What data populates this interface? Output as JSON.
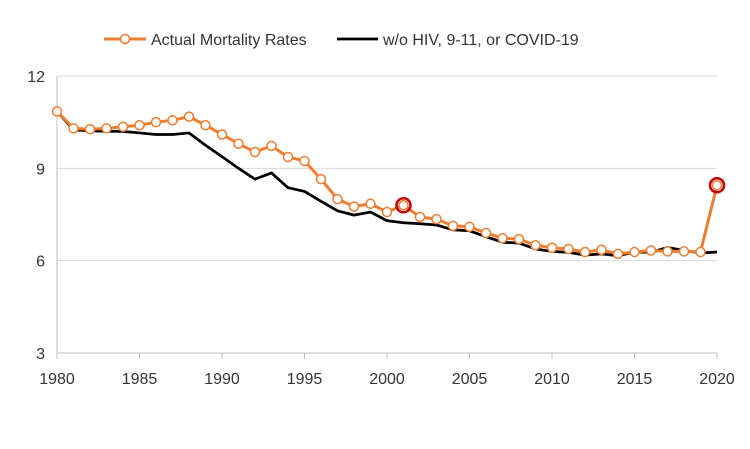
{
  "chart_data": {
    "type": "line",
    "title": "",
    "xlabel": "",
    "ylabel": "",
    "xlim": [
      1980,
      2020
    ],
    "ylim": [
      3,
      12
    ],
    "x_ticks": [
      "1980",
      "1985",
      "1990",
      "1995",
      "2000",
      "2005",
      "2010",
      "2015",
      "2020"
    ],
    "y_ticks": [
      "3",
      "6",
      "9",
      "12"
    ],
    "grid": "horizontal gridlines at y ticks",
    "legend_position": "top-center",
    "x": [
      1980,
      1981,
      1982,
      1983,
      1984,
      1985,
      1986,
      1987,
      1988,
      1989,
      1990,
      1991,
      1992,
      1993,
      1994,
      1995,
      1996,
      1997,
      1998,
      1999,
      2000,
      2001,
      2002,
      2003,
      2004,
      2005,
      2006,
      2007,
      2008,
      2009,
      2010,
      2011,
      2012,
      2013,
      2014,
      2015,
      2016,
      2017,
      2018,
      2019,
      2020
    ],
    "series": [
      {
        "name": "Actual Mortality Rates",
        "color": "#ED7D31",
        "marker": "hollow-circle",
        "values": [
          10.85,
          10.3,
          10.27,
          10.3,
          10.35,
          10.4,
          10.5,
          10.56,
          10.68,
          10.4,
          10.1,
          9.8,
          9.53,
          9.73,
          9.37,
          9.24,
          8.65,
          8.0,
          7.76,
          7.85,
          7.58,
          7.8,
          7.42,
          7.35,
          7.13,
          7.1,
          6.9,
          6.73,
          6.7,
          6.5,
          6.42,
          6.38,
          6.28,
          6.35,
          6.22,
          6.28,
          6.33,
          6.3,
          6.3,
          6.28,
          8.45
        ]
      },
      {
        "name": "w/o HIV, 9-11, or COVID-19",
        "color": "#000000",
        "marker": "none",
        "values": [
          10.85,
          10.25,
          10.22,
          10.2,
          10.2,
          10.15,
          10.1,
          10.1,
          10.15,
          9.75,
          9.38,
          9.0,
          8.65,
          8.85,
          8.37,
          8.25,
          7.93,
          7.62,
          7.48,
          7.58,
          7.3,
          7.23,
          7.2,
          7.16,
          7.0,
          6.97,
          6.78,
          6.6,
          6.57,
          6.38,
          6.3,
          6.27,
          6.18,
          6.22,
          6.16,
          6.28,
          6.27,
          6.43,
          6.33,
          6.25,
          6.28
        ]
      }
    ],
    "highlighted_points": [
      {
        "x": 2001,
        "y": 7.8,
        "color": "#C00000"
      },
      {
        "x": 2020,
        "y": 8.45,
        "color": "#C00000"
      }
    ]
  }
}
